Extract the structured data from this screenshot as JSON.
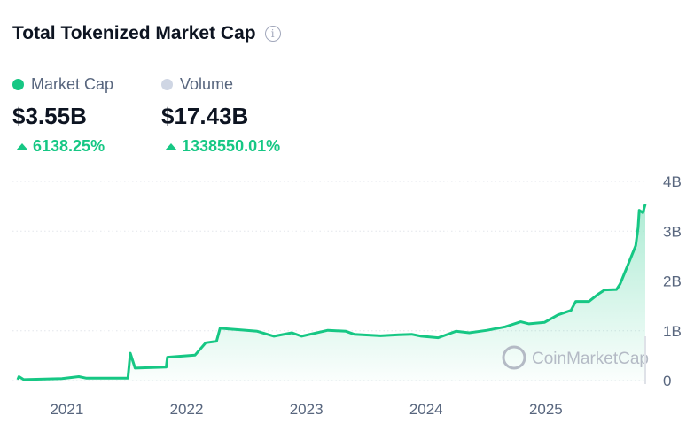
{
  "header": {
    "title": "Total Tokenized Market Cap",
    "info_icon": "info-icon"
  },
  "stats": [
    {
      "label": "Market Cap",
      "value": "$3.55B",
      "change": "6138.25%",
      "color": "#16c784"
    },
    {
      "label": "Volume",
      "value": "$17.43B",
      "change": "1338550.01%",
      "color": "#cfd6e4"
    }
  ],
  "watermark": "CoinMarketCap",
  "chart_data": {
    "type": "area",
    "title": "Total Tokenized Market Cap",
    "xlabel": "",
    "ylabel": "",
    "xlim": [
      2020.59,
      2025.83
    ],
    "ylim": [
      0,
      4
    ],
    "grid": true,
    "x_ticks": [
      {
        "v": 2021,
        "label": "2021"
      },
      {
        "v": 2022,
        "label": "2022"
      },
      {
        "v": 2023,
        "label": "2023"
      },
      {
        "v": 2024,
        "label": "2024"
      },
      {
        "v": 2025,
        "label": "2025"
      }
    ],
    "y_ticks": [
      {
        "v": 0,
        "label": "0"
      },
      {
        "v": 1,
        "label": "1B"
      },
      {
        "v": 2,
        "label": "2B"
      },
      {
        "v": 3,
        "label": "3B"
      },
      {
        "v": 4,
        "label": "4B"
      }
    ],
    "series": [
      {
        "name": "Market Cap",
        "color": "#16c784",
        "points": [
          [
            2020.59,
            0.02
          ],
          [
            2020.6,
            0.08
          ],
          [
            2020.64,
            0.02
          ],
          [
            2020.96,
            0.04
          ],
          [
            2021.1,
            0.08
          ],
          [
            2021.16,
            0.05
          ],
          [
            2021.51,
            0.05
          ],
          [
            2021.53,
            0.55
          ],
          [
            2021.57,
            0.25
          ],
          [
            2021.83,
            0.27
          ],
          [
            2021.84,
            0.47
          ],
          [
            2022.07,
            0.51
          ],
          [
            2022.16,
            0.76
          ],
          [
            2022.25,
            0.79
          ],
          [
            2022.28,
            1.05
          ],
          [
            2022.44,
            1.02
          ],
          [
            2022.59,
            0.99
          ],
          [
            2022.73,
            0.89
          ],
          [
            2022.88,
            0.96
          ],
          [
            2022.96,
            0.89
          ],
          [
            2023.18,
            1.01
          ],
          [
            2023.33,
            0.99
          ],
          [
            2023.4,
            0.93
          ],
          [
            2023.62,
            0.9
          ],
          [
            2023.77,
            0.92
          ],
          [
            2023.88,
            0.93
          ],
          [
            2023.96,
            0.89
          ],
          [
            2024.1,
            0.86
          ],
          [
            2024.25,
            0.99
          ],
          [
            2024.36,
            0.96
          ],
          [
            2024.51,
            1.01
          ],
          [
            2024.66,
            1.08
          ],
          [
            2024.79,
            1.18
          ],
          [
            2024.86,
            1.14
          ],
          [
            2024.99,
            1.17
          ],
          [
            2025.1,
            1.32
          ],
          [
            2025.21,
            1.41
          ],
          [
            2025.25,
            1.59
          ],
          [
            2025.36,
            1.59
          ],
          [
            2025.44,
            1.74
          ],
          [
            2025.49,
            1.82
          ],
          [
            2025.59,
            1.83
          ],
          [
            2025.62,
            1.94
          ],
          [
            2025.7,
            2.41
          ],
          [
            2025.75,
            2.71
          ],
          [
            2025.77,
            3.07
          ],
          [
            2025.78,
            3.42
          ],
          [
            2025.81,
            3.37
          ],
          [
            2025.83,
            3.54
          ]
        ]
      }
    ]
  }
}
